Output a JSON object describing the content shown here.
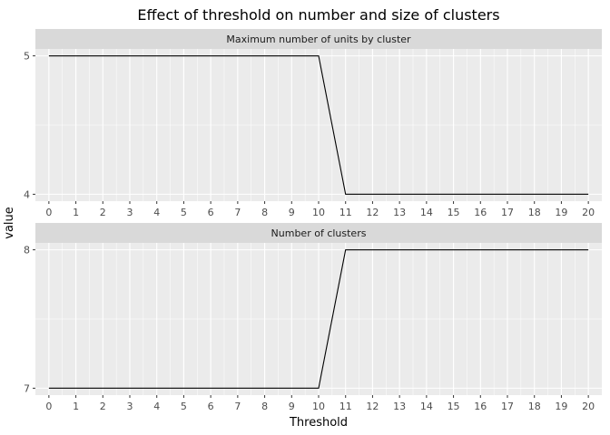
{
  "chart_data": {
    "type": "line",
    "title": "Effect of threshold on number and size of clusters",
    "xlabel": "Threshold",
    "ylabel": "value",
    "x_ticks": [
      "0",
      "1",
      "2",
      "3",
      "4",
      "5",
      "6",
      "7",
      "8",
      "9",
      "10",
      "11",
      "12",
      "13",
      "14",
      "15",
      "16",
      "17",
      "18",
      "19",
      "20"
    ],
    "xlim": [
      -0.5,
      20.5
    ],
    "facets": [
      {
        "strip": "Maximum number of units by cluster",
        "y_ticks": [
          "4",
          "5"
        ],
        "ylim": [
          3.95,
          5.05
        ],
        "series": [
          {
            "x": [
              0,
              1,
              2,
              3,
              4,
              5,
              6,
              7,
              8,
              9,
              10,
              11,
              12,
              13,
              14,
              15,
              16,
              17,
              18,
              19,
              20
            ],
            "values": [
              5,
              5,
              5,
              5,
              5,
              5,
              5,
              5,
              5,
              5,
              5,
              4,
              4,
              4,
              4,
              4,
              4,
              4,
              4,
              4,
              4
            ]
          }
        ]
      },
      {
        "strip": "Number of clusters",
        "y_ticks": [
          "7",
          "8"
        ],
        "ylim": [
          6.95,
          8.05
        ],
        "series": [
          {
            "x": [
              0,
              1,
              2,
              3,
              4,
              5,
              6,
              7,
              8,
              9,
              10,
              11,
              12,
              13,
              14,
              15,
              16,
              17,
              18,
              19,
              20
            ],
            "values": [
              7,
              7,
              7,
              7,
              7,
              7,
              7,
              7,
              7,
              7,
              7,
              8,
              8,
              8,
              8,
              8,
              8,
              8,
              8,
              8,
              8
            ]
          }
        ]
      }
    ],
    "grid": true,
    "legend": "none",
    "colors": {
      "panel_background": "#ebebeb",
      "strip_background": "#d9d9d9",
      "gridline": "#ffffff",
      "line": "#000000",
      "tick": "#333333"
    }
  }
}
